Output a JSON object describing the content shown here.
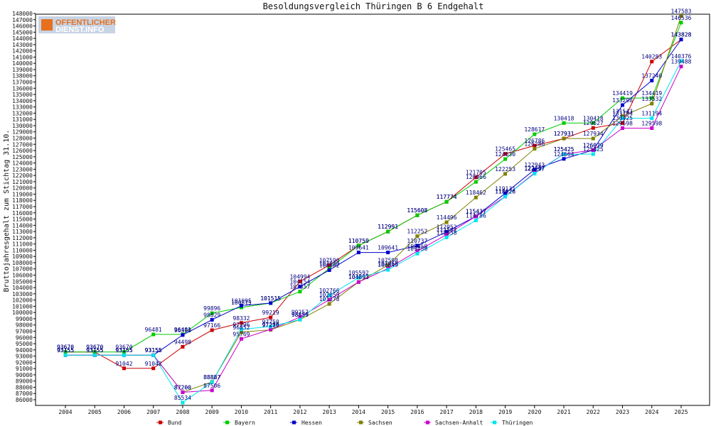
{
  "chart_data": {
    "type": "line",
    "title": "Besoldungsvergleich Thüringen B 6 Endgehalt",
    "ylabel": "Bruttojahresgehalt zum Stichtag 31.10.",
    "xlabel": "",
    "ylim": [
      86000,
      148000
    ],
    "ytick_step": 1000,
    "grid": false,
    "legend_position": "bottom",
    "x": [
      "2004",
      "2005",
      "2006",
      "2007",
      "2008",
      "2009",
      "2010",
      "2011",
      "2012",
      "2013",
      "2014",
      "2015",
      "2016",
      "2017",
      "2018",
      "2019",
      "2020",
      "2021",
      "2022",
      "2023",
      "2024",
      "2025"
    ],
    "series": [
      {
        "name": "Bund",
        "color": "#cc0000",
        "values": [
          93670,
          93670,
          91042,
          91042,
          94498,
          97166,
          98332,
          99219,
          104994,
          107590,
          110759,
          112991,
          115608,
          117774,
          121705,
          125465,
          126786,
          127931,
          129627,
          130425,
          140283,
          143828
        ]
      },
      {
        "name": "Bayern",
        "color": "#00cc00",
        "values": [
          93670,
          93670,
          93670,
          96481,
          96481,
          99896,
          100815,
          101515,
          103357,
          107080,
          110759,
          112991,
          115608,
          117774,
          120966,
          124630,
          128617,
          130418,
          130418,
          134419,
          134419,
          146536
        ]
      },
      {
        "name": "Hessen",
        "color": "#0000cc",
        "values": [
          93155,
          93155,
          93155,
          93155,
          96390,
          98829,
          101095,
          101515,
          104154,
          106802,
          109641,
          109641,
          110737,
          112952,
          115437,
          119131,
          122943,
          124664,
          126079,
          133298,
          137240,
          143828
        ]
      },
      {
        "name": "Sachsen",
        "color": "#808000",
        "values": [
          93155,
          93155,
          93155,
          93155,
          87200,
          88867,
          96852,
          97219,
          98859,
          101378,
          104893,
          107598,
          112252,
          114496,
          118462,
          122253,
          126286,
          127931,
          127934,
          131543,
          133532,
          147583
        ]
      },
      {
        "name": "Sachsen-Anhalt",
        "color": "#cc00cc",
        "values": [
          93155,
          93155,
          93155,
          93155,
          87200,
          87506,
          95769,
          97296,
          99257,
          102059,
          104893,
          107060,
          109850,
          112502,
          115437,
          118626,
          122417,
          125425,
          126079,
          129598,
          129598,
          139488
        ]
      },
      {
        "name": "Thüringen",
        "color": "#00e5ee",
        "values": [
          93155,
          93155,
          93155,
          93155,
          85534,
          88827,
          97296,
          97750,
          98859,
          102766,
          105592,
          106849,
          109450,
          112058,
          114786,
          118626,
          122297,
          125425,
          125425,
          131194,
          131194,
          140376
        ]
      }
    ]
  },
  "logo": {
    "line1": "OFFENTLICHER",
    "line2": "DIENST.INFO"
  }
}
